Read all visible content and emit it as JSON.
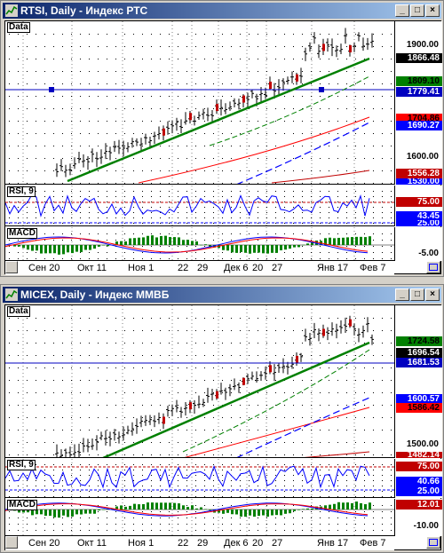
{
  "windows": [
    {
      "title": "RTSI, Daily - Индекс РТС",
      "price_label": "Data",
      "rsi_label": "RSI, 9",
      "macd_label": "MACD",
      "price_ticks": [
        "1900.00",
        "1600.00"
      ],
      "price_tags": [
        {
          "text": "1866.48",
          "bg": "#000000",
          "fg": "#ffffff"
        },
        {
          "text": "1809.10",
          "bg": "#008000",
          "fg": "#000000"
        },
        {
          "text": "1779.41",
          "bg": "#0000c0",
          "fg": "#ffffff"
        },
        {
          "text": "1704.86",
          "bg": "#ff0000",
          "fg": "#000000"
        },
        {
          "text": "1690.27",
          "bg": "#0000ff",
          "fg": "#ffffff"
        },
        {
          "text": "1556.28",
          "bg": "#c00000",
          "fg": "#ffffff"
        },
        {
          "text": "1530.00",
          "bg": "#0000ff",
          "fg": "#ffffff"
        }
      ],
      "rsi_tags": [
        {
          "text": "75.00",
          "bg": "#c00000",
          "fg": "#ffffff"
        },
        {
          "text": "43.45",
          "bg": "#0000ff",
          "fg": "#ffffff"
        },
        {
          "text": "25.00",
          "bg": "#0000ff",
          "fg": "#ffffff"
        }
      ],
      "macd_ticks": [
        "-5.00"
      ],
      "macd_tags": [],
      "dates": [
        "Сен 20",
        "Окт 11",
        "Ноя 1",
        "22",
        "29",
        "Дек 6",
        "20",
        "27",
        "Янв 17",
        "Фев 7"
      ]
    },
    {
      "title": "MICEX, Daily - Индекс ММВБ",
      "price_label": "Data",
      "rsi_label": "RSI, 9",
      "macd_label": "MACD",
      "price_ticks": [
        "1500.00"
      ],
      "price_tags": [
        {
          "text": "1724.58",
          "bg": "#008000",
          "fg": "#000000"
        },
        {
          "text": "1696.54",
          "bg": "#000000",
          "fg": "#ffffff"
        },
        {
          "text": "1681.53",
          "bg": "#0000c0",
          "fg": "#ffffff"
        },
        {
          "text": "1600.57",
          "bg": "#0000ff",
          "fg": "#ffffff"
        },
        {
          "text": "1586.42",
          "bg": "#ff0000",
          "fg": "#000000"
        },
        {
          "text": "1482.14",
          "bg": "#c00000",
          "fg": "#ffffff"
        }
      ],
      "rsi_tags": [
        {
          "text": "75.00",
          "bg": "#c00000",
          "fg": "#ffffff"
        },
        {
          "text": "40.66",
          "bg": "#0000ff",
          "fg": "#ffffff"
        },
        {
          "text": "25.00",
          "bg": "#0000ff",
          "fg": "#ffffff"
        }
      ],
      "macd_ticks": [
        "-10.00"
      ],
      "macd_tags": [
        {
          "text": "12.01",
          "bg": "#c00000",
          "fg": "#ffffff"
        }
      ],
      "dates": [
        "Сен 20",
        "Окт 11",
        "Ноя 1",
        "22",
        "29",
        "Дек 6",
        "20",
        "27",
        "Янв 17",
        "Фев 7"
      ]
    }
  ],
  "buttons": {
    "minimize": "_",
    "maximize": "□",
    "close": "×"
  },
  "icons": {
    "window": "chart-window-icon",
    "corner": "chart-settings-icon"
  }
}
